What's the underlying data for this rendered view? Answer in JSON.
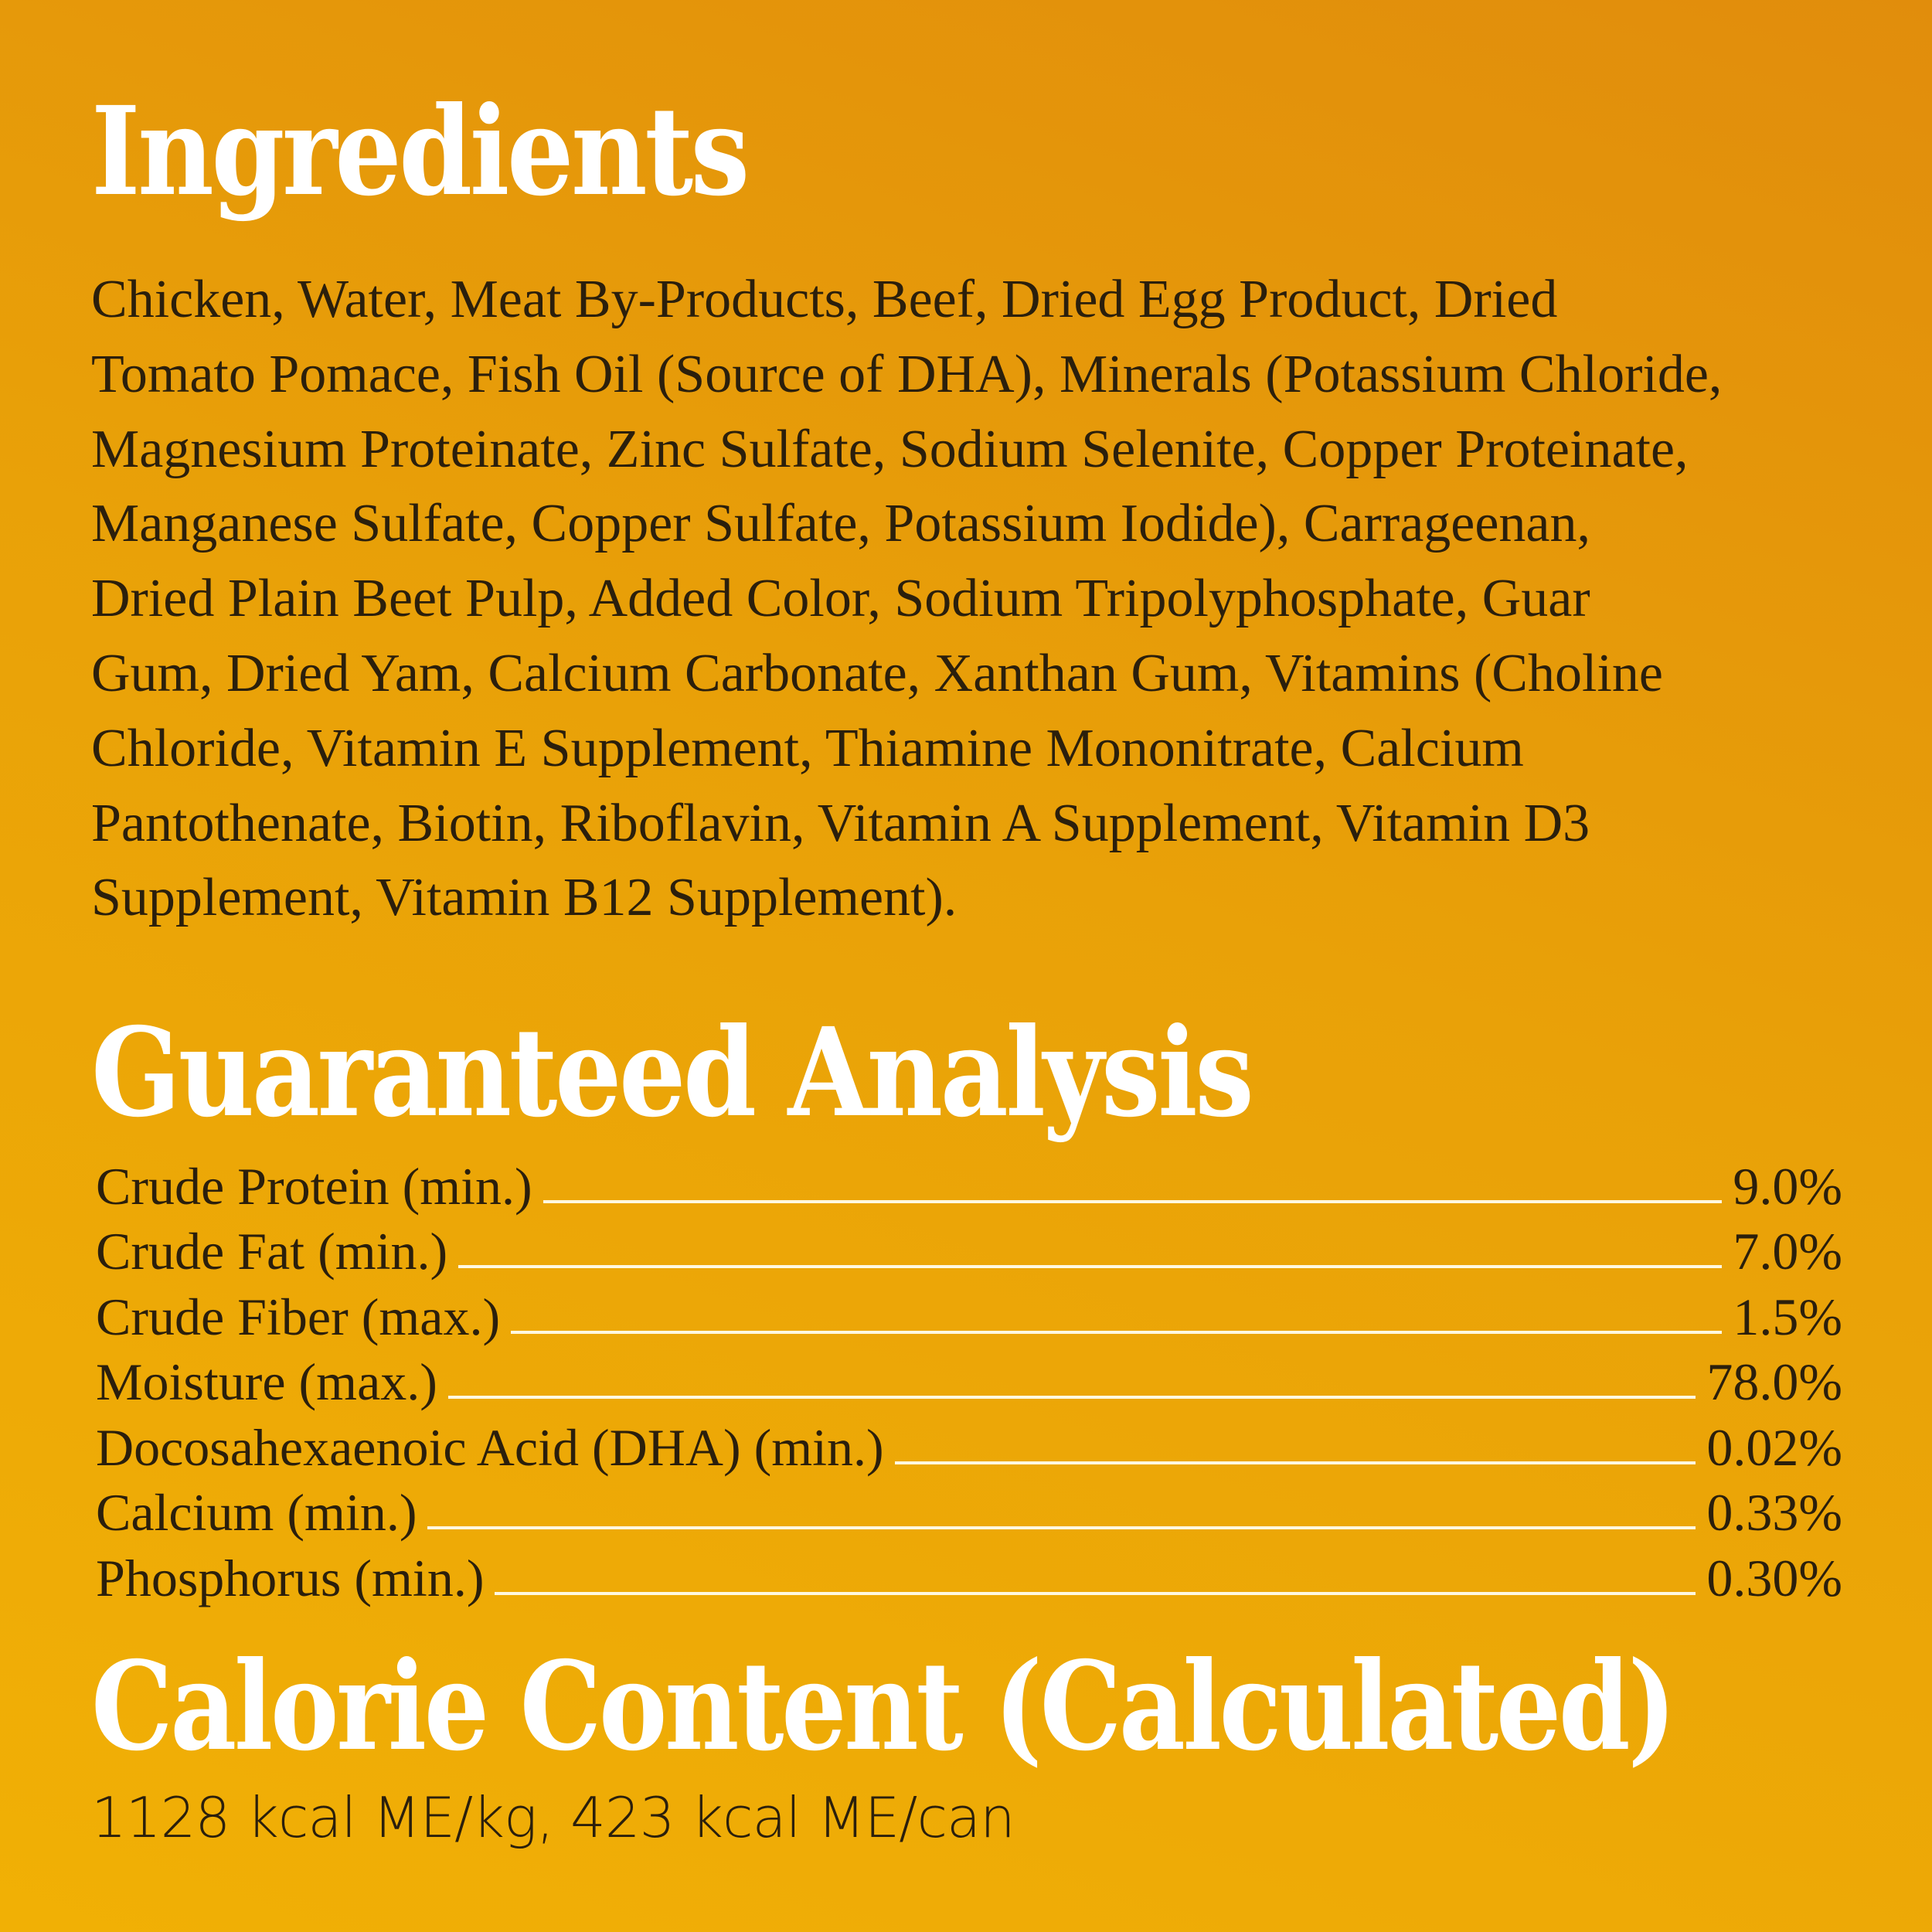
{
  "colors": {
    "background_top": "#E18D0C",
    "background_bottom": "#F1B005",
    "heading": "#FFFFFF",
    "text": "#2B1F0C",
    "rule": "#FFF8E0"
  },
  "ingredients": {
    "title": "Ingredients",
    "lines": [
      "Chicken, Water, Meat By-Products, Beef, Dried Egg Product, Dried",
      "Tomato Pomace, Fish Oil (Source of DHA), Minerals (Potassium Chloride,",
      "Magnesium Proteinate, Zinc Sulfate, Sodium Selenite, Copper Proteinate,",
      "Manganese Sulfate, Copper Sulfate, Potassium Iodide), Carrageenan,",
      "Dried Plain Beet Pulp, Added Color, Sodium Tripolyphosphate, Guar",
      "Gum, Dried Yam, Calcium Carbonate, Xanthan Gum, Vitamins (Choline",
      "Chloride, Vitamin E Supplement, Thiamine Mononitrate, Calcium",
      "Pantothenate, Biotin, Riboflavin, Vitamin A Supplement, Vitamin D3",
      "Supplement, Vitamin B12 Supplement)."
    ]
  },
  "analysis": {
    "title": "Guaranteed Analysis",
    "rows": [
      {
        "label": "Crude Protein (min.)",
        "value": "9.0%"
      },
      {
        "label": "Crude Fat (min.)",
        "value": "7.0%"
      },
      {
        "label": "Crude Fiber (max.)",
        "value": "1.5%"
      },
      {
        "label": "Moisture (max.)",
        "value": "78.0%"
      },
      {
        "label": "Docosahexaenoic Acid (DHA) (min.)",
        "value": "0.02%"
      },
      {
        "label": "Calcium (min.)",
        "value": "0.33%"
      },
      {
        "label": "Phosphorus (min.)",
        "value": "0.30%"
      }
    ]
  },
  "calorie": {
    "title": "Calorie Content (Calculated)",
    "text": "1128 kcal ME/kg, 423 kcal ME/can"
  }
}
